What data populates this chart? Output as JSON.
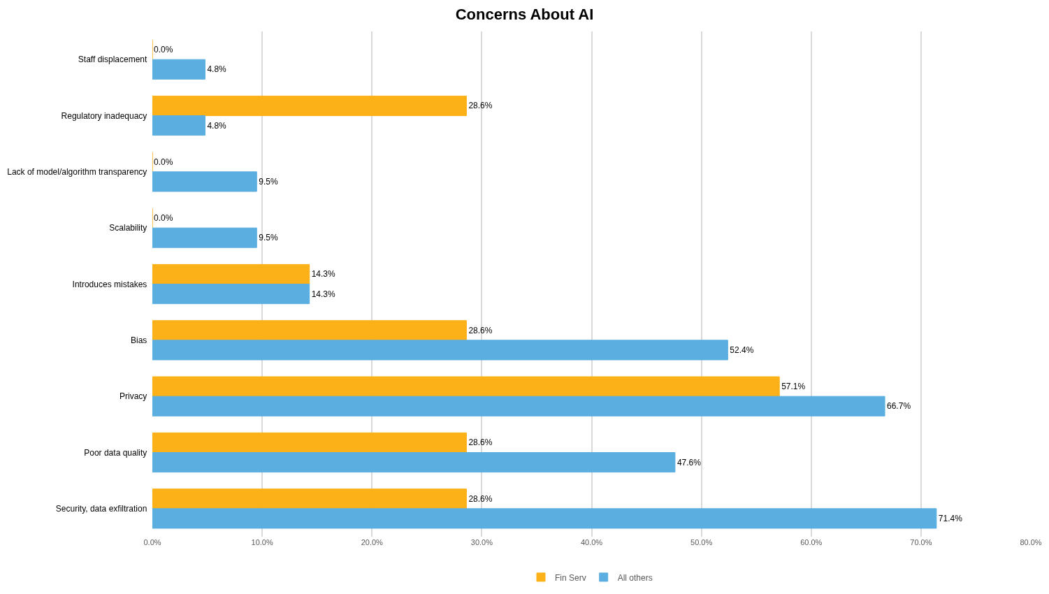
{
  "chart_data": {
    "type": "bar",
    "orientation": "horizontal",
    "title": "Concerns About AI",
    "categories": [
      "Staff displacement",
      "Regulatory inadequacy",
      "Lack of model/algorithm transparency",
      "Scalability",
      "Introduces mistakes",
      "Bias",
      "Privacy",
      "Poor data quality",
      "Security, data exfiltration"
    ],
    "series": [
      {
        "name": "Fin Serv",
        "color": "#fbb117",
        "values": [
          0.0,
          28.6,
          0.0,
          0.0,
          14.3,
          28.6,
          57.1,
          28.6,
          28.6
        ],
        "value_labels": [
          "0.0%",
          "28.6%",
          "0.0%",
          "0.0%",
          "14.3%",
          "28.6%",
          "57.1%",
          "28.6%",
          "28.6%"
        ]
      },
      {
        "name": "All others",
        "color": "#5aaee0",
        "values": [
          4.8,
          4.8,
          9.5,
          9.5,
          14.3,
          52.4,
          66.7,
          47.6,
          71.4
        ],
        "value_labels": [
          "4.8%",
          "4.8%",
          "9.5%",
          "9.5%",
          "14.3%",
          "52.4%",
          "66.7%",
          "47.6%",
          "71.4%"
        ]
      }
    ],
    "xlim": [
      0,
      80
    ],
    "xticks": [
      {
        "value": 0,
        "label": "0.0%"
      },
      {
        "value": 10,
        "label": "10.0%"
      },
      {
        "value": 20,
        "label": "20.0%"
      },
      {
        "value": 30,
        "label": "30.0%"
      },
      {
        "value": 40,
        "label": "40.0%"
      },
      {
        "value": 50,
        "label": "50.0%"
      },
      {
        "value": 60,
        "label": "60.0%"
      },
      {
        "value": 70,
        "label": "70.0%"
      },
      {
        "value": 80,
        "label": "80.0%"
      }
    ],
    "grid": "x",
    "legend": "bottom"
  }
}
